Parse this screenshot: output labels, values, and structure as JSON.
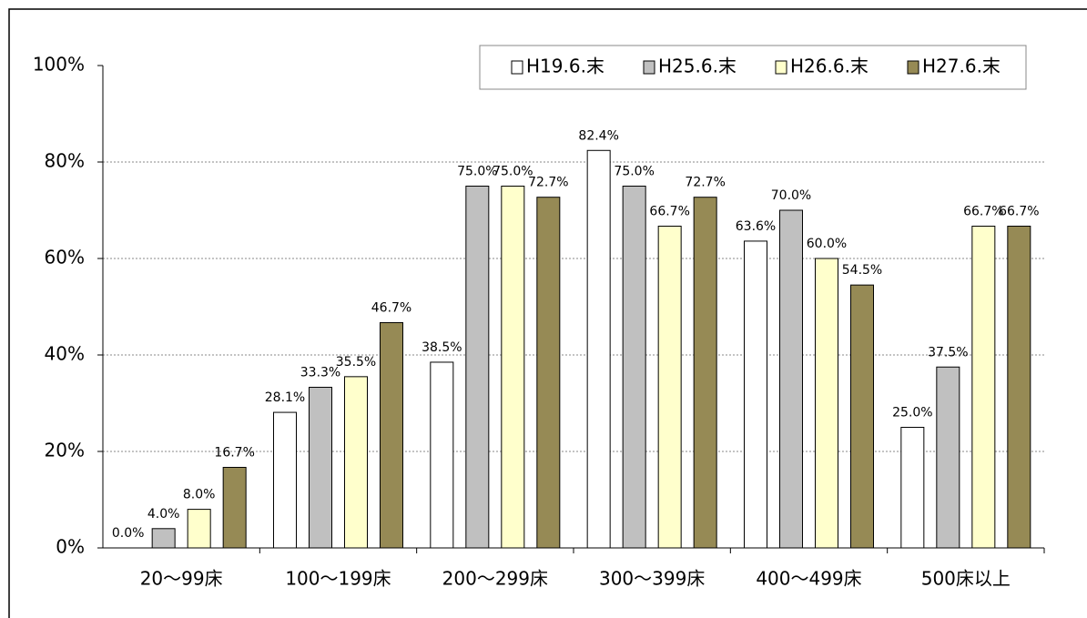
{
  "chart_data": {
    "type": "bar",
    "categories": [
      "20〜99床",
      "100〜199床",
      "200〜299床",
      "300〜399床",
      "400〜499床",
      "500床以上"
    ],
    "series": [
      {
        "name": "H19.6.末",
        "color": "#ffffff",
        "values": [
          0.0,
          28.1,
          38.5,
          82.4,
          63.6,
          25.0
        ],
        "value_labels": [
          "0.0%",
          "28.1%",
          "38.5%",
          "82.4%",
          "63.6%",
          "25.0%"
        ]
      },
      {
        "name": "H25.6.末",
        "color": "#c0c0c0",
        "values": [
          4.0,
          33.3,
          75.0,
          75.0,
          70.0,
          37.5
        ],
        "value_labels": [
          "4.0%",
          "33.3%",
          "75.0%",
          "75.0%",
          "70.0%",
          "37.5%"
        ]
      },
      {
        "name": "H26.6.末",
        "color": "#ffffcc",
        "values": [
          8.0,
          35.5,
          75.0,
          66.7,
          60.0,
          66.7
        ],
        "value_labels": [
          "8.0%",
          "35.5%",
          "75.0%",
          "66.7%",
          "60.0%",
          "66.7%"
        ]
      },
      {
        "name": "H27.6.末",
        "color": "#968a55",
        "values": [
          16.7,
          46.7,
          72.7,
          72.7,
          54.5,
          66.7
        ],
        "value_labels": [
          "16.7%",
          "46.7%",
          "72.7%",
          "72.7%",
          "54.5%",
          "66.7%"
        ]
      }
    ],
    "ylim": [
      0,
      100
    ],
    "yticks": [
      {
        "value": 0,
        "label": "0%"
      },
      {
        "value": 20,
        "label": "20%"
      },
      {
        "value": 40,
        "label": "40%"
      },
      {
        "value": 60,
        "label": "60%"
      },
      {
        "value": 80,
        "label": "80%"
      },
      {
        "value": 100,
        "label": "100%"
      }
    ],
    "grid": true,
    "legend": "top-right"
  }
}
